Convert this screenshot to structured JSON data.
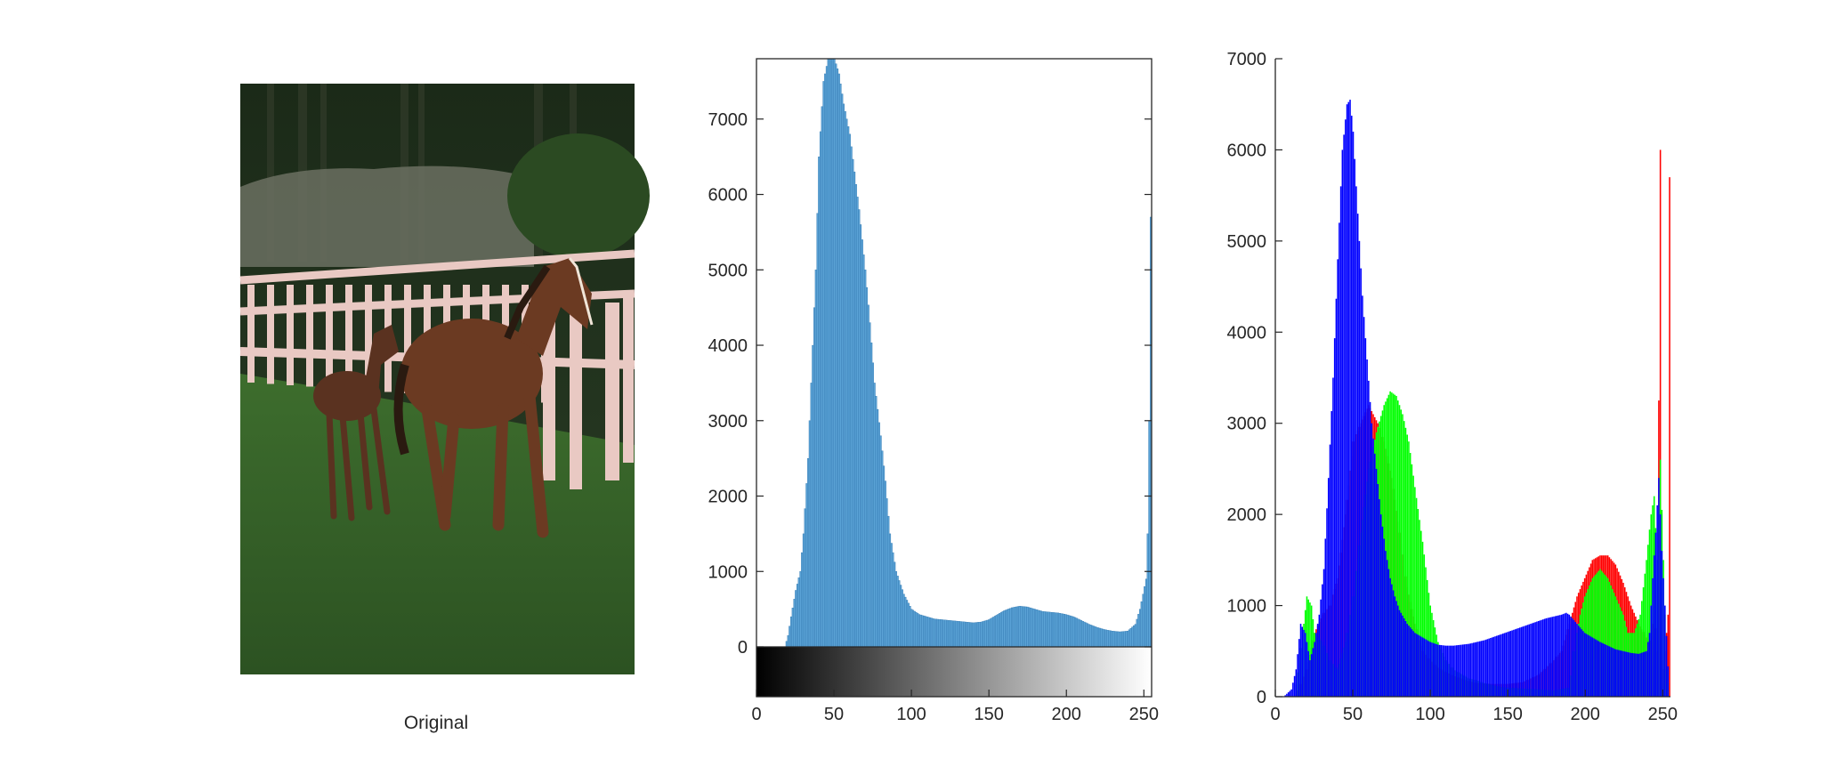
{
  "figure": {
    "original_caption": "Original"
  },
  "chart_data": [
    {
      "type": "image",
      "title": "",
      "caption": "Original",
      "subject": "mare and foal walking on grass beside a white wooden fence",
      "colors": {
        "trees": "#1d2e1a",
        "rock": "#6b7062",
        "grass": "#3b6a2c",
        "fence": "#e9c9c3",
        "horse": "#6b3a22",
        "foal": "#5a3220"
      }
    },
    {
      "type": "bar",
      "title": "",
      "xlabel": "",
      "ylabel": "",
      "xlim": [
        0,
        255
      ],
      "ylim": [
        0,
        7800
      ],
      "xticks": [
        0,
        50,
        100,
        150,
        200,
        250
      ],
      "yticks": [
        0,
        1000,
        2000,
        3000,
        4000,
        5000,
        6000,
        7000
      ],
      "grid": false,
      "colorbar": "grayscale",
      "color": "#5ba3d6",
      "edge_color": "#2c73ad",
      "points": [
        [
          0,
          0
        ],
        [
          18,
          0
        ],
        [
          20,
          150
        ],
        [
          22,
          400
        ],
        [
          25,
          750
        ],
        [
          28,
          1000
        ],
        [
          30,
          1500
        ],
        [
          33,
          2500
        ],
        [
          35,
          3500
        ],
        [
          38,
          5000
        ],
        [
          40,
          6500
        ],
        [
          43,
          7500
        ],
        [
          46,
          7800
        ],
        [
          50,
          7800
        ],
        [
          53,
          7600
        ],
        [
          56,
          7200
        ],
        [
          60,
          6800
        ],
        [
          63,
          6300
        ],
        [
          66,
          5800
        ],
        [
          70,
          5000
        ],
        [
          73,
          4300
        ],
        [
          76,
          3500
        ],
        [
          80,
          2800
        ],
        [
          83,
          2200
        ],
        [
          86,
          1500
        ],
        [
          90,
          1000
        ],
        [
          95,
          700
        ],
        [
          100,
          500
        ],
        [
          105,
          430
        ],
        [
          110,
          400
        ],
        [
          115,
          370
        ],
        [
          120,
          360
        ],
        [
          125,
          350
        ],
        [
          130,
          340
        ],
        [
          135,
          330
        ],
        [
          140,
          320
        ],
        [
          145,
          330
        ],
        [
          150,
          360
        ],
        [
          155,
          420
        ],
        [
          160,
          480
        ],
        [
          165,
          520
        ],
        [
          170,
          540
        ],
        [
          175,
          530
        ],
        [
          180,
          500
        ],
        [
          185,
          470
        ],
        [
          190,
          460
        ],
        [
          195,
          450
        ],
        [
          200,
          430
        ],
        [
          205,
          400
        ],
        [
          210,
          350
        ],
        [
          215,
          300
        ],
        [
          220,
          260
        ],
        [
          225,
          230
        ],
        [
          230,
          210
        ],
        [
          235,
          200
        ],
        [
          240,
          210
        ],
        [
          245,
          300
        ],
        [
          248,
          500
        ],
        [
          250,
          700
        ],
        [
          252,
          900
        ],
        [
          253,
          1500
        ],
        [
          254,
          3000
        ],
        [
          255,
          5700
        ]
      ]
    },
    {
      "type": "bar",
      "title": "",
      "xlabel": "",
      "ylabel": "",
      "xlim": [
        0,
        255
      ],
      "ylim": [
        0,
        7000
      ],
      "xticks": [
        0,
        50,
        100,
        150,
        200,
        250
      ],
      "yticks": [
        0,
        1000,
        2000,
        3000,
        4000,
        5000,
        6000,
        7000
      ],
      "grid": false,
      "colors": {
        "red": "#ff0000",
        "green": "#00ff00",
        "blue": "#0000ff"
      },
      "series": [
        {
          "channel": "red",
          "points": [
            [
              0,
              0
            ],
            [
              12,
              0
            ],
            [
              15,
              100
            ],
            [
              20,
              300
            ],
            [
              25,
              700
            ],
            [
              30,
              900
            ],
            [
              35,
              1000
            ],
            [
              40,
              1300
            ],
            [
              45,
              2000
            ],
            [
              50,
              2800
            ],
            [
              55,
              3000
            ],
            [
              60,
              3200
            ],
            [
              63,
              3100
            ],
            [
              66,
              3000
            ],
            [
              70,
              2800
            ],
            [
              75,
              2400
            ],
            [
              80,
              1800
            ],
            [
              85,
              1200
            ],
            [
              90,
              800
            ],
            [
              95,
              500
            ],
            [
              100,
              400
            ],
            [
              105,
              320
            ],
            [
              110,
              270
            ],
            [
              115,
              230
            ],
            [
              120,
              200
            ],
            [
              125,
              170
            ],
            [
              130,
              150
            ],
            [
              140,
              140
            ],
            [
              150,
              140
            ],
            [
              160,
              160
            ],
            [
              170,
              240
            ],
            [
              180,
              400
            ],
            [
              185,
              500
            ],
            [
              190,
              800
            ],
            [
              195,
              1100
            ],
            [
              200,
              1300
            ],
            [
              205,
              1500
            ],
            [
              210,
              1550
            ],
            [
              215,
              1550
            ],
            [
              220,
              1450
            ],
            [
              225,
              1250
            ],
            [
              230,
              1000
            ],
            [
              235,
              800
            ],
            [
              240,
              650
            ],
            [
              243,
              600
            ],
            [
              245,
              1000
            ],
            [
              247,
              500
            ],
            [
              249,
              6000
            ],
            [
              250,
              400
            ],
            [
              251,
              300
            ],
            [
              253,
              700
            ],
            [
              254,
              900
            ],
            [
              255,
              5700
            ]
          ]
        },
        {
          "channel": "green",
          "points": [
            [
              0,
              0
            ],
            [
              12,
              0
            ],
            [
              15,
              400
            ],
            [
              18,
              800
            ],
            [
              20,
              1100
            ],
            [
              23,
              1000
            ],
            [
              25,
              700
            ],
            [
              30,
              600
            ],
            [
              35,
              400
            ],
            [
              40,
              300
            ],
            [
              45,
              600
            ],
            [
              50,
              1100
            ],
            [
              55,
              1800
            ],
            [
              60,
              2500
            ],
            [
              65,
              2900
            ],
            [
              70,
              3200
            ],
            [
              74,
              3350
            ],
            [
              78,
              3300
            ],
            [
              82,
              3100
            ],
            [
              86,
              2800
            ],
            [
              90,
              2300
            ],
            [
              95,
              1700
            ],
            [
              100,
              1000
            ],
            [
              105,
              600
            ],
            [
              110,
              400
            ],
            [
              115,
              300
            ],
            [
              120,
              250
            ],
            [
              125,
              200
            ],
            [
              130,
              180
            ],
            [
              135,
              150
            ],
            [
              140,
              130
            ],
            [
              145,
              110
            ],
            [
              150,
              100
            ],
            [
              160,
              90
            ],
            [
              170,
              80
            ],
            [
              180,
              70
            ],
            [
              190,
              100
            ],
            [
              193,
              500
            ],
            [
              197,
              900
            ],
            [
              200,
              1100
            ],
            [
              205,
              1300
            ],
            [
              210,
              1400
            ],
            [
              215,
              1300
            ],
            [
              220,
              1100
            ],
            [
              225,
              900
            ],
            [
              228,
              700
            ],
            [
              232,
              700
            ],
            [
              236,
              900
            ],
            [
              240,
              1500
            ],
            [
              243,
              2000
            ],
            [
              245,
              2200
            ],
            [
              247,
              1500
            ],
            [
              249,
              2600
            ],
            [
              251,
              1500
            ],
            [
              253,
              300
            ],
            [
              255,
              0
            ]
          ]
        },
        {
          "channel": "blue",
          "points": [
            [
              0,
              0
            ],
            [
              5,
              0
            ],
            [
              10,
              80
            ],
            [
              13,
              300
            ],
            [
              16,
              800
            ],
            [
              19,
              700
            ],
            [
              22,
              400
            ],
            [
              25,
              600
            ],
            [
              28,
              900
            ],
            [
              31,
              1400
            ],
            [
              34,
              2400
            ],
            [
              37,
              3500
            ],
            [
              40,
              4800
            ],
            [
              43,
              6000
            ],
            [
              46,
              6500
            ],
            [
              48,
              6550
            ],
            [
              50,
              6200
            ],
            [
              53,
              5300
            ],
            [
              56,
              4400
            ],
            [
              59,
              3700
            ],
            [
              62,
              3000
            ],
            [
              65,
              2500
            ],
            [
              68,
              2000
            ],
            [
              71,
              1600
            ],
            [
              74,
              1300
            ],
            [
              77,
              1100
            ],
            [
              80,
              950
            ],
            [
              85,
              800
            ],
            [
              90,
              700
            ],
            [
              95,
              650
            ],
            [
              100,
              600
            ],
            [
              105,
              570
            ],
            [
              110,
              560
            ],
            [
              115,
              560
            ],
            [
              120,
              570
            ],
            [
              125,
              580
            ],
            [
              130,
              600
            ],
            [
              135,
              620
            ],
            [
              140,
              650
            ],
            [
              145,
              680
            ],
            [
              150,
              710
            ],
            [
              155,
              740
            ],
            [
              160,
              770
            ],
            [
              165,
              800
            ],
            [
              170,
              830
            ],
            [
              175,
              860
            ],
            [
              180,
              880
            ],
            [
              185,
              900
            ],
            [
              188,
              920
            ],
            [
              190,
              900
            ],
            [
              195,
              800
            ],
            [
              200,
              700
            ],
            [
              205,
              650
            ],
            [
              210,
              600
            ],
            [
              215,
              560
            ],
            [
              220,
              520
            ],
            [
              225,
              500
            ],
            [
              230,
              480
            ],
            [
              235,
              470
            ],
            [
              240,
              500
            ],
            [
              242,
              700
            ],
            [
              244,
              1300
            ],
            [
              246,
              1800
            ],
            [
              248,
              2400
            ],
            [
              250,
              1600
            ],
            [
              252,
              1000
            ],
            [
              255,
              0
            ]
          ]
        }
      ]
    }
  ]
}
